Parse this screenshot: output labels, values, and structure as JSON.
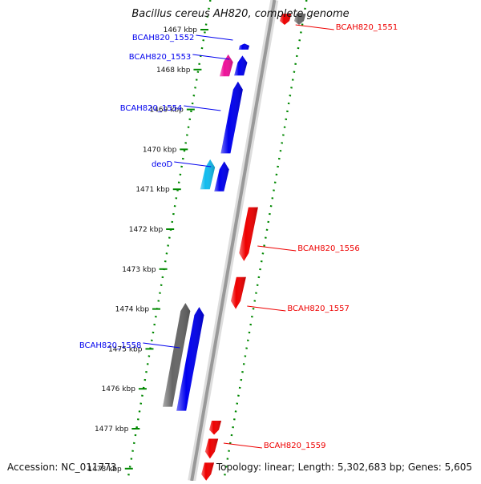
{
  "header": {
    "title": "Bacillus cereus AH820, complete genome"
  },
  "footer": {
    "accession": "Accession: NC_011773",
    "summary": "Topology: linear; Length: 5,302,683 bp; Genes: 5,605"
  },
  "colors": {
    "forward_gene": "#0000ee",
    "reverse_gene": "#ee0000",
    "pseudogene": "#666666",
    "tick": "#008800",
    "backbone": "#999999"
  },
  "chart_data": {
    "type": "genome-map",
    "ticks": [
      {
        "pos_kbp": 1467,
        "label": "1467 kbp"
      },
      {
        "pos_kbp": 1468,
        "label": "1468 kbp"
      },
      {
        "pos_kbp": 1469,
        "label": "1469 kbp"
      },
      {
        "pos_kbp": 1470,
        "label": "1470 kbp"
      },
      {
        "pos_kbp": 1471,
        "label": "1471 kbp"
      },
      {
        "pos_kbp": 1472,
        "label": "1472 kbp"
      },
      {
        "pos_kbp": 1473,
        "label": "1473 kbp"
      },
      {
        "pos_kbp": 1474,
        "label": "1474 kbp"
      },
      {
        "pos_kbp": 1475,
        "label": "1475 kbp"
      },
      {
        "pos_kbp": 1476,
        "label": "1476 kbp"
      },
      {
        "pos_kbp": 1477,
        "label": "1477 kbp"
      },
      {
        "pos_kbp": 1478,
        "label": "1478 kbp"
      }
    ],
    "genes": [
      {
        "label": "BCAH820_1551",
        "strand": "-",
        "start_kbp": 1466.6,
        "end_kbp": 1466.88,
        "color": "#ee0000",
        "labeled": true
      },
      {
        "label": "",
        "strand": "-",
        "start_kbp": 1466.6,
        "end_kbp": 1466.88,
        "color": "#6a6a6a",
        "labeled": false,
        "track": 2
      },
      {
        "label": "BCAH820_1552",
        "strand": "+",
        "start_kbp": 1467.35,
        "end_kbp": 1467.5,
        "color": "#0000ee",
        "labeled": true
      },
      {
        "label": "BCAH820_1553",
        "strand": "+",
        "start_kbp": 1467.65,
        "end_kbp": 1468.15,
        "color": "#0000ee",
        "labeled": true
      },
      {
        "label": "",
        "strand": "+",
        "start_kbp": 1467.62,
        "end_kbp": 1468.17,
        "color": "#ee1199",
        "labeled": false,
        "track": 2
      },
      {
        "label": "BCAH820_1554",
        "strand": "+",
        "start_kbp": 1468.3,
        "end_kbp": 1470.1,
        "color": "#0000ee",
        "labeled": true
      },
      {
        "label": "deoD",
        "strand": "+",
        "start_kbp": 1470.3,
        "end_kbp": 1471.05,
        "color": "#0000ee",
        "labeled": true
      },
      {
        "label": "",
        "strand": "+",
        "start_kbp": 1470.25,
        "end_kbp": 1471.0,
        "color": "#11bbee",
        "labeled": false,
        "track": 2
      },
      {
        "label": "BCAH820_1556",
        "strand": "-",
        "start_kbp": 1471.45,
        "end_kbp": 1472.8,
        "color": "#ee0000",
        "labeled": true
      },
      {
        "label": "BCAH820_1557",
        "strand": "-",
        "start_kbp": 1473.2,
        "end_kbp": 1474.0,
        "color": "#ee0000",
        "labeled": true
      },
      {
        "label": "BCAH820_1558",
        "strand": "+",
        "start_kbp": 1473.95,
        "end_kbp": 1476.55,
        "color": "#0000ee",
        "labeled": true
      },
      {
        "label": "",
        "strand": "+",
        "start_kbp": 1473.85,
        "end_kbp": 1476.45,
        "color": "#666666",
        "labeled": false,
        "track": 2
      },
      {
        "label": "BCAH820_1559",
        "strand": "-",
        "start_kbp": 1476.8,
        "end_kbp": 1477.15,
        "color": "#ee0000",
        "labeled": true
      },
      {
        "label": "",
        "strand": "-",
        "start_kbp": 1477.25,
        "end_kbp": 1477.75,
        "color": "#ee0000",
        "labeled": false
      },
      {
        "label": "",
        "strand": "-",
        "start_kbp": 1477.85,
        "end_kbp": 1478.3,
        "color": "#ee0000",
        "labeled": false
      }
    ]
  }
}
